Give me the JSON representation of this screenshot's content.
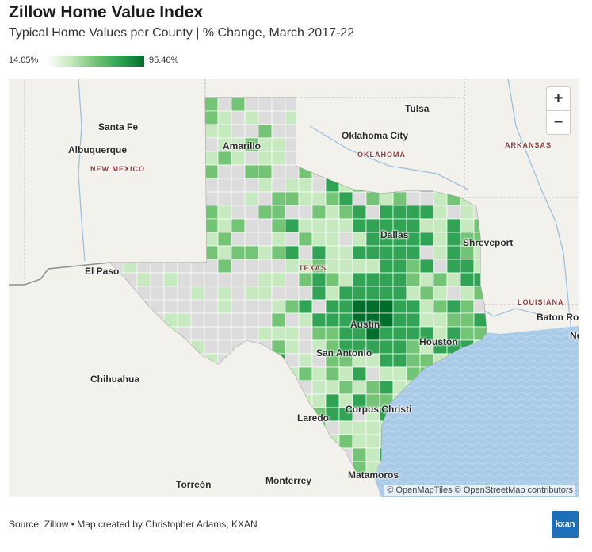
{
  "title": "Zillow Home Value Index",
  "subtitle": "Typical Home Values per County | % Change, March 2017-22",
  "legend": {
    "min": "14.05%",
    "max": "95.46%",
    "colors": [
      "#ffffff",
      "#c7e9c0",
      "#74c476",
      "#31a354",
      "#006d2c"
    ]
  },
  "map": {
    "zoom_in": "+",
    "zoom_out": "−",
    "attribution": "© OpenMapTiles © OpenStreetMap contributors",
    "cities": [
      "Tulsa",
      "Santa Fe",
      "Oklahoma City",
      "Albuquerque",
      "Amarillo",
      "Dallas",
      "Shreveport",
      "El Paso",
      "Austin",
      "Baton Rou",
      "Houston",
      "Ne",
      "San Antonio",
      "Chihuahua",
      "Corpus Christi",
      "Laredo",
      "Matamoros",
      "Monterrey",
      "Torreón"
    ],
    "states": [
      "NEW MEXICO",
      "OKLAHOMA",
      "ARKANSAS",
      "TEXAS",
      "LOUISIANA"
    ],
    "colors": {
      "land": "#f3f1ec",
      "water": "#a9cbe8",
      "no_data": "#dcdcdc",
      "border": "#9a9a9a"
    }
  },
  "footer": {
    "source": "Source: Zillow • Map created by Christopher Adams, KXAN",
    "logo": "kxan"
  }
}
